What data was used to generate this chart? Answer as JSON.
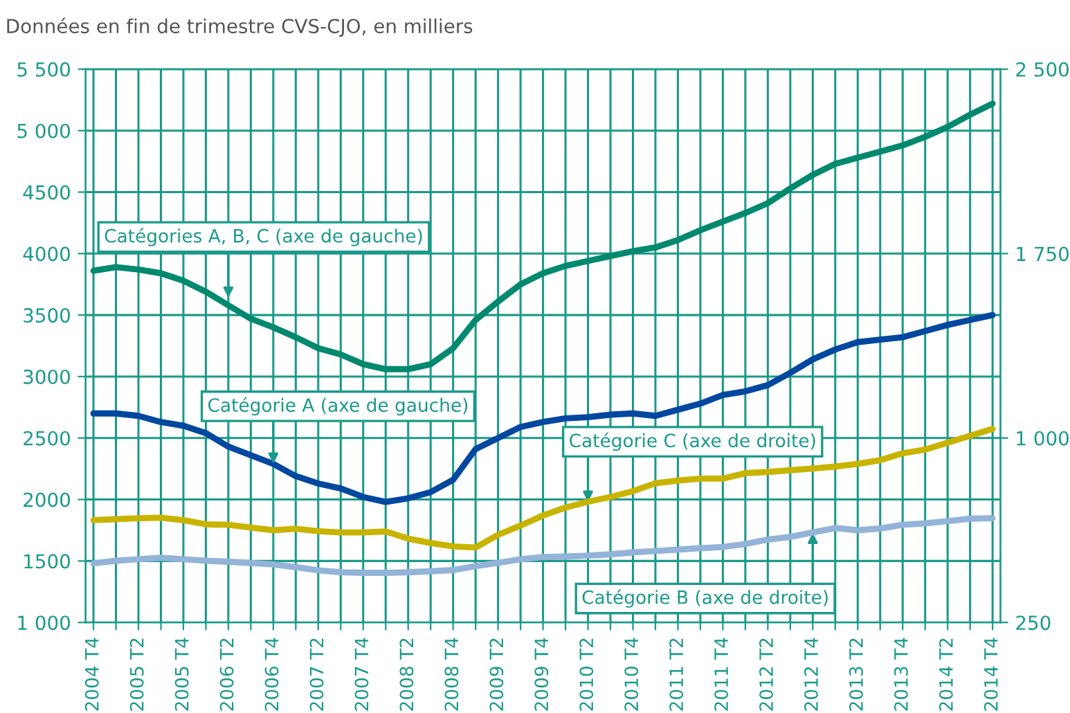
{
  "chart_data": {
    "type": "line",
    "title": "Données en fin de trimestre CVS-CJO, en milliers",
    "categories": [
      "2004 T4",
      null,
      "2005 T2",
      null,
      "2005 T4",
      null,
      "2006 T2",
      null,
      "2006 T4",
      null,
      "2007 T2",
      null,
      "2007 T4",
      null,
      "2008 T2",
      null,
      "2008 T4",
      null,
      "2009 T2",
      null,
      "2009 T4",
      null,
      "2010 T2",
      null,
      "2010 T4",
      null,
      "2011 T2",
      null,
      "2011 T4",
      null,
      "2012 T2",
      null,
      "2012 T4",
      null,
      "2013 T2",
      null,
      "2013 T4",
      null,
      "2014 T2",
      null,
      "2014 T4"
    ],
    "series": [
      {
        "color": "#00896f",
        "axis": "y",
        "values": [
          3860,
          3890,
          3870,
          3840,
          3780,
          3690,
          3580,
          3470,
          3400,
          3320,
          3230,
          3180,
          3100,
          3060,
          3060,
          3100,
          3230,
          3460,
          3610,
          3750,
          3840,
          3900,
          3940,
          3980,
          4020,
          4050,
          4110,
          4190,
          4260,
          4330,
          4410,
          4530,
          4640,
          4730,
          4780,
          4830,
          4880,
          4950,
          5030,
          5130,
          5220
        ]
      },
      {
        "color": "#0047a0",
        "axis": "y",
        "values": [
          2700,
          2700,
          2680,
          2630,
          2600,
          2540,
          2430,
          2360,
          2290,
          2190,
          2130,
          2090,
          2020,
          1980,
          2010,
          2060,
          2160,
          2410,
          2500,
          2590,
          2630,
          2660,
          2670,
          2690,
          2700,
          2680,
          2730,
          2780,
          2850,
          2880,
          2930,
          3030,
          3140,
          3220,
          3280,
          3300,
          3320,
          3370,
          3420,
          3460,
          3500
        ]
      },
      {
        "color": "#c8b400",
        "axis": "y2",
        "values": [
          666,
          670,
          674,
          676,
          666,
          649,
          647,
          636,
          625,
          631,
          621,
          616,
          616,
          620,
          591,
          573,
          559,
          555,
          606,
          644,
          685,
          717,
          741,
          760,
          784,
          816,
          827,
          835,
          835,
          857,
          862,
          869,
          876,
          884,
          895,
          910,
          938,
          953,
          981,
          1009,
          1037
        ]
      },
      {
        "color": "#93b3d9",
        "axis": "y2",
        "values": [
          490,
          501,
          507,
          513,
          507,
          501,
          497,
          492,
          486,
          475,
          462,
          454,
          452,
          452,
          454,
          458,
          463,
          479,
          492,
          507,
          516,
          518,
          522,
          527,
          535,
          541,
          546,
          552,
          557,
          569,
          587,
          598,
          616,
          634,
          625,
          632,
          647,
          653,
          662,
          672,
          674
        ]
      }
    ],
    "ylim": [
      1000,
      5500
    ],
    "yticks": [
      {
        "value": 1000,
        "label": "1 000"
      },
      1500,
      2000,
      2500,
      3000,
      3500,
      4000,
      4500,
      {
        "value": 5000,
        "label": "5 000"
      },
      {
        "value": 5500,
        "label": "5 500"
      }
    ],
    "y2lim": [
      250,
      2500
    ],
    "y2ticks": [
      250,
      {
        "value": 1000,
        "label": "1 000"
      },
      {
        "value": 1750,
        "label": "1 750"
      },
      {
        "value": 2500,
        "label": "2 500"
      }
    ],
    "annotations": [
      {
        "text": "Catégories A, B, C (axe de gauche)",
        "x": "2006 T2",
        "y": 3640
      },
      {
        "text": "Catégorie A (axe de gauche)",
        "x": "2006 T4",
        "y": 2290
      },
      {
        "text": "Catégorie C (axe de droite)",
        "x": "2010 T2",
        "y": 1980
      },
      {
        "text": "Catégorie B (axe de droite)",
        "x": "2012 T4",
        "y": 1730
      }
    ],
    "grid": true
  }
}
